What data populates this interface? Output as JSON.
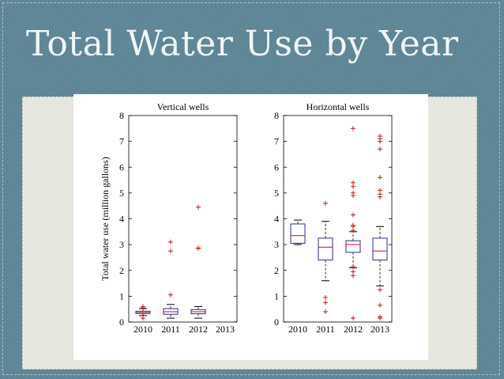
{
  "slide": {
    "title": "Total Water Use by Year"
  },
  "chart_data": [
    {
      "type": "box",
      "title": "Vertical wells",
      "ylabel": "Total water use (million gallons)",
      "categories": [
        "2010",
        "2011",
        "2012",
        "2013"
      ],
      "ylim": [
        0,
        8
      ],
      "yticks": [
        "0",
        "1",
        "2",
        "3",
        "4",
        "5",
        "6",
        "7",
        "8"
      ],
      "boxes": [
        {
          "category": "2010",
          "q1": 0.33,
          "median": 0.37,
          "q3": 0.42,
          "whisker_low": 0.25,
          "whisker_high": 0.52,
          "outliers": [
            0.15,
            0.55,
            0.6
          ]
        },
        {
          "category": "2011",
          "q1": 0.3,
          "median": 0.4,
          "q3": 0.52,
          "whisker_low": 0.15,
          "whisker_high": 0.68,
          "outliers": [
            1.05,
            2.75,
            3.1
          ]
        },
        {
          "category": "2012",
          "q1": 0.32,
          "median": 0.4,
          "q3": 0.48,
          "whisker_low": 0.15,
          "whisker_high": 0.6,
          "outliers": [
            2.85,
            2.87,
            4.45
          ]
        }
      ]
    },
    {
      "type": "box",
      "title": "Horizontal wells",
      "ylabel": "",
      "categories": [
        "2010",
        "2011",
        "2012",
        "2013"
      ],
      "ylim": [
        0,
        8
      ],
      "yticks": [
        "0",
        "1",
        "2",
        "3",
        "4",
        "5",
        "6",
        "7",
        "8"
      ],
      "boxes": [
        {
          "category": "2010",
          "q1": 3.05,
          "median": 3.35,
          "q3": 3.8,
          "whisker_low": 3.0,
          "whisker_high": 3.95,
          "outliers": []
        },
        {
          "category": "2011",
          "q1": 2.4,
          "median": 2.9,
          "q3": 3.25,
          "whisker_low": 1.6,
          "whisker_high": 3.9,
          "outliers": [
            0.4,
            0.75,
            0.95,
            4.6
          ]
        },
        {
          "category": "2012",
          "q1": 2.7,
          "median": 3.0,
          "q3": 3.15,
          "whisker_low": 2.1,
          "whisker_high": 3.5,
          "outliers": [
            0.15,
            1.8,
            1.95,
            2.15,
            3.55,
            3.7,
            3.75,
            4.15,
            4.9,
            5.0,
            5.25,
            5.4,
            7.5
          ]
        },
        {
          "category": "2013",
          "q1": 2.4,
          "median": 2.75,
          "q3": 3.25,
          "whisker_low": 1.4,
          "whisker_high": 3.7,
          "outliers": [
            0.15,
            0.2,
            0.65,
            1.25,
            4.85,
            4.95,
            5.1,
            5.6,
            6.7,
            7.0,
            7.1,
            7.2
          ]
        }
      ]
    }
  ]
}
